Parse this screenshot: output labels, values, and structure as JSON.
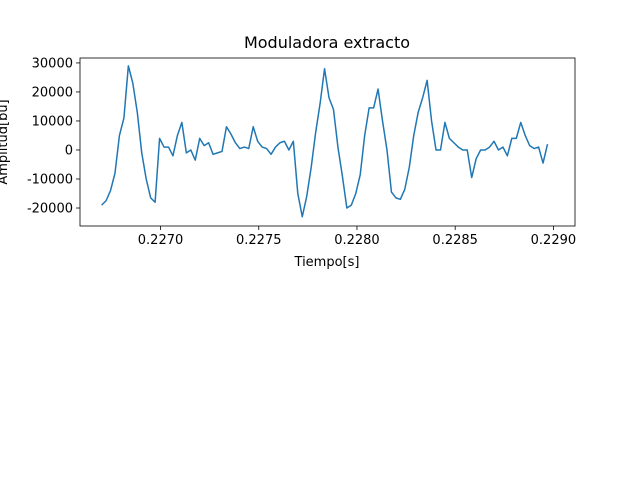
{
  "chart_data": {
    "type": "line",
    "title": "Moduladora extracto",
    "title_color": "#0000ff",
    "xlabel": "Tiempo[s]",
    "xlabel_color": "#ff0000",
    "ylabel": "Amplitud[bu]",
    "ylabel_color": "#ffa500",
    "xlim": [
      0.22659,
      0.22911
    ],
    "ylim": [
      -26200,
      31700
    ],
    "xticks": [
      {
        "value": 0.227,
        "label": "0.2270"
      },
      {
        "value": 0.2275,
        "label": "0.2275"
      },
      {
        "value": 0.228,
        "label": "0.2280"
      },
      {
        "value": 0.2285,
        "label": "0.2285"
      },
      {
        "value": 0.229,
        "label": "0.2290"
      }
    ],
    "yticks": [
      -20000,
      -10000,
      0,
      10000,
      20000,
      30000
    ],
    "series": [
      {
        "color": "#1f77b4",
        "x": [
          0.2267,
          0.2267227,
          0.2267454,
          0.2267681,
          0.2267908,
          0.2268135,
          0.2268362,
          0.2268589,
          0.2268816,
          0.2269043,
          0.226927,
          0.2269497,
          0.2269724,
          0.2269951,
          0.2270178,
          0.2270405,
          0.2270632,
          0.2270859,
          0.2271086,
          0.2271313,
          0.227154,
          0.2271767,
          0.2271994,
          0.2272221,
          0.2272448,
          0.2272675,
          0.2272902,
          0.2273129,
          0.2273356,
          0.2273583,
          0.227381,
          0.2274037,
          0.2274264,
          0.2274491,
          0.2274718,
          0.2274945,
          0.2275172,
          0.2275399,
          0.2275626,
          0.2275853,
          0.227608,
          0.2276307,
          0.2276534,
          0.2276761,
          0.2276988,
          0.2277215,
          0.2277442,
          0.2277669,
          0.2277896,
          0.2278123,
          0.227835,
          0.2278577,
          0.2278804,
          0.2279031,
          0.2279258,
          0.2279485,
          0.2279712,
          0.2279939,
          0.2280166,
          0.2280393,
          0.228062,
          0.2280847,
          0.2281074,
          0.2281301,
          0.2281528,
          0.2281755,
          0.2281982,
          0.2282209,
          0.2282436,
          0.2282663,
          0.228289,
          0.2283117,
          0.2283344,
          0.2283571,
          0.2283798,
          0.2284025,
          0.2284252,
          0.2284479,
          0.2284706,
          0.2284933,
          0.228516,
          0.2285387,
          0.2285614,
          0.2285841,
          0.2286068,
          0.2286295,
          0.2286522,
          0.2286749,
          0.2286976,
          0.2287203,
          0.228743,
          0.2287657,
          0.2287884,
          0.2288111,
          0.2288338,
          0.2288565,
          0.2288792,
          0.2289019,
          0.2289246,
          0.2289473,
          0.22897
        ],
        "values": [
          -19000,
          -17500,
          -14000,
          -8000,
          5000,
          11000,
          29000,
          23000,
          13000,
          -1000,
          -10000,
          -16500,
          -18000,
          4000,
          1000,
          1000,
          -2000,
          5000,
          9500,
          -1000,
          0,
          -3500,
          4000,
          1500,
          2500,
          -1500,
          -1000,
          -500,
          8000,
          5500,
          2500,
          500,
          1000,
          500,
          8000,
          3000,
          1000,
          500,
          -1500,
          1000,
          2500,
          3000,
          0,
          3000,
          -15000,
          -23000,
          -16000,
          -6000,
          6000,
          16000,
          28000,
          18000,
          14000,
          1000,
          -9000,
          -20000,
          -19000,
          -15000,
          -8500,
          5000,
          14500,
          14500,
          21000,
          10000,
          0,
          -14500,
          -16500,
          -17000,
          -13500,
          -6000,
          5000,
          13000,
          18000,
          24000,
          10000,
          0,
          0,
          9500,
          4000,
          2500,
          1000,
          0,
          0,
          -9500,
          -3000,
          0,
          0,
          1000,
          3000,
          0,
          1000,
          -2000,
          4000,
          4000,
          9500,
          5000,
          1500,
          500,
          1000,
          -4500,
          2000
        ]
      }
    ]
  }
}
